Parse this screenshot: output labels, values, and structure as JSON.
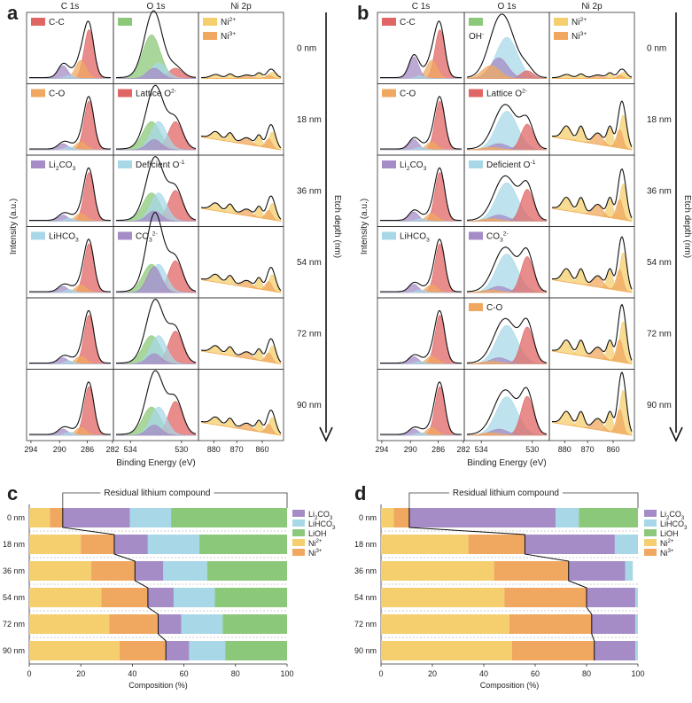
{
  "colors": {
    "CC": "#e06666",
    "CO": "#f0a860",
    "Li2CO3": "#a58cc6",
    "LiHCO3": "#a8d8e8",
    "LiOH": "#8cc87a",
    "Lattice": "#e06666",
    "Deficient": "#a8d8e8",
    "CO3": "#a58cc6",
    "Ni2": "#f5cf6e",
    "Ni3": "#f0a860",
    "envelope": "#111111"
  },
  "xps_panels": [
    {
      "id": "a",
      "col_titles": [
        "C 1s",
        "O 1s",
        "Ni 2p"
      ],
      "depths": [
        "0 nm",
        "18 nm",
        "36 nm",
        "54 nm",
        "72 nm",
        "90 nm"
      ],
      "y_label": "Intensity (a.u.)",
      "x_label": "Binding Energy (eV)",
      "depth_label": "Etch depth (nm)",
      "c_ticks": [
        "294",
        "290",
        "286",
        "282"
      ],
      "o_ticks": [
        "534",
        "530"
      ],
      "ni_ticks": [
        "880",
        "870",
        "860"
      ],
      "legend_c": [
        "C-C",
        "C-O",
        "Li2CO3",
        "LiHCO3"
      ],
      "legend_c_rows": [
        0,
        1,
        2,
        3
      ],
      "legend_o": [
        "",
        "Lattice O2-",
        "Deficient O-1",
        "CO32-"
      ],
      "legend_o_rows": [
        0,
        1,
        2,
        3
      ],
      "legend_ni": [
        "Ni2+",
        "Ni3+"
      ]
    },
    {
      "id": "b",
      "col_titles": [
        "C 1s",
        "O 1s",
        "Ni 2p"
      ],
      "depths": [
        "0 nm",
        "18 nm",
        "36 nm",
        "54 nm",
        "72 nm",
        "90 nm"
      ],
      "y_label": "Intensity (a.u.)",
      "x_label": "Binding Energy (eV)",
      "depth_label": "Etch depth (nm)",
      "c_ticks": [
        "294",
        "290",
        "286",
        "282"
      ],
      "o_ticks": [
        "534",
        "530"
      ],
      "ni_ticks": [
        "880",
        "870",
        "860"
      ],
      "legend_c": [
        "C-C",
        "C-O",
        "Li2CO3",
        "LiHCO3"
      ],
      "legend_c_rows": [
        0,
        1,
        2,
        3
      ],
      "legend_o": [
        "OH-",
        "Lattice O2-",
        "Deficient O-1",
        "CO32-",
        "C-O"
      ],
      "legend_o_rows": [
        0,
        1,
        2,
        3,
        4
      ],
      "legend_ni": [
        "Ni2+",
        "Ni3+"
      ]
    }
  ],
  "chart_data": [
    {
      "id": "c",
      "type": "bar",
      "stacked": true,
      "orientation": "horizontal",
      "categories": [
        "0 nm",
        "18 nm",
        "36 nm",
        "54 nm",
        "72 nm",
        "90 nm"
      ],
      "series": [
        {
          "name": "Ni2+",
          "color": "#f5cf6e",
          "values": [
            8,
            20,
            24,
            28,
            31,
            35
          ]
        },
        {
          "name": "Ni3+",
          "color": "#f0a860",
          "values": [
            5,
            13,
            17,
            18,
            19,
            18
          ]
        },
        {
          "name": "Li2CO3",
          "color": "#a58cc6",
          "values": [
            26,
            13,
            11,
            10,
            9,
            9
          ]
        },
        {
          "name": "LiHCO3",
          "color": "#a8d8e8",
          "values": [
            16,
            20,
            17,
            16,
            16,
            14
          ]
        },
        {
          "name": "LiOH",
          "color": "#8cc87a",
          "values": [
            45,
            34,
            31,
            28,
            25,
            24
          ]
        }
      ],
      "legend": [
        "Li2CO3",
        "LiHCO3",
        "LiOH",
        "Ni2+",
        "Ni3+"
      ],
      "annotation": "Residual lithium compound",
      "xlabel": "Composition (%)",
      "xlim": [
        0,
        100
      ],
      "xticks": [
        "0",
        "20",
        "40",
        "60",
        "80",
        "100"
      ]
    },
    {
      "id": "d",
      "type": "bar",
      "stacked": true,
      "orientation": "horizontal",
      "categories": [
        "0 nm",
        "18 nm",
        "36 nm",
        "54 nm",
        "72 nm",
        "90 nm"
      ],
      "series": [
        {
          "name": "Ni2+",
          "color": "#f5cf6e",
          "values": [
            5,
            34,
            44,
            48,
            50,
            51
          ]
        },
        {
          "name": "Ni3+",
          "color": "#f0a860",
          "values": [
            6,
            22,
            29,
            32,
            32,
            32
          ]
        },
        {
          "name": "Li2CO3",
          "color": "#a58cc6",
          "values": [
            57,
            35,
            22,
            19,
            17,
            16
          ]
        },
        {
          "name": "LiHCO3",
          "color": "#a8d8e8",
          "values": [
            9,
            9,
            3,
            1,
            1,
            1
          ]
        },
        {
          "name": "LiOH",
          "color": "#8cc87a",
          "values": [
            23,
            0,
            0,
            0,
            0,
            0
          ]
        }
      ],
      "legend": [
        "Li2CO3",
        "LiHCO3",
        "LiOH",
        "Ni2+",
        "Ni3+"
      ],
      "annotation": "Residual lithium compound",
      "xlabel": "Composition (%)",
      "xlim": [
        0,
        100
      ],
      "xticks": [
        "0",
        "20",
        "40",
        "60",
        "80",
        "100"
      ]
    }
  ]
}
